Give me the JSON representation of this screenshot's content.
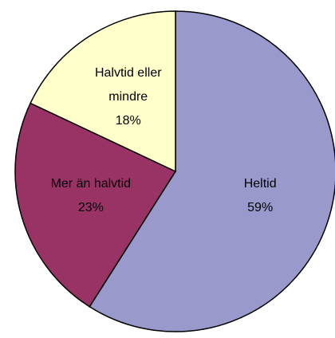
{
  "chart_data": {
    "type": "pie",
    "categories": [
      "Heltid",
      "Mer än halvtid",
      "Halvtid eller mindre"
    ],
    "values": [
      59,
      23,
      18
    ],
    "value_labels": [
      "59%",
      "23%",
      "18%"
    ],
    "colors": [
      "#9999cc",
      "#993366",
      "#ffffcc"
    ]
  }
}
